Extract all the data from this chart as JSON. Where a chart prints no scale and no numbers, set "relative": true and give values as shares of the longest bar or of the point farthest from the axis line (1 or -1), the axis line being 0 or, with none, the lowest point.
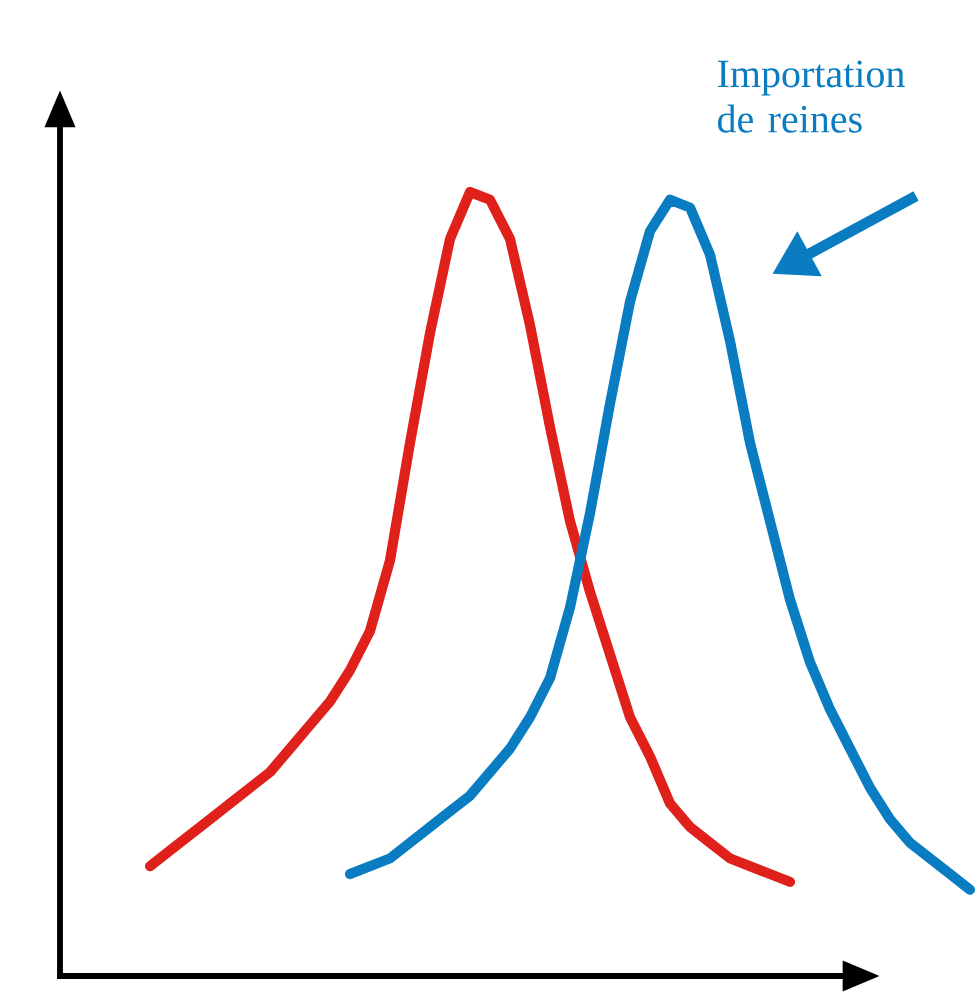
{
  "chart_data": {
    "type": "line",
    "relative": true,
    "categories": [
      null,
      null,
      null,
      null,
      null,
      null,
      null,
      null,
      null,
      null,
      null,
      null,
      null,
      null,
      null,
      null,
      null,
      null,
      null,
      null,
      null,
      null,
      null,
      null,
      null,
      null,
      null,
      null,
      null,
      null,
      null,
      null,
      null,
      null,
      null,
      null,
      null,
      null,
      null,
      null,
      null,
      null
    ],
    "series": [
      {
        "color": "#e0201b",
        "values": [
          0.14,
          0.16,
          0.18,
          0.2,
          0.22,
          0.24,
          0.26,
          0.29,
          0.32,
          0.35,
          0.39,
          0.44,
          0.53,
          0.68,
          0.82,
          0.94,
          1.0,
          0.99,
          0.94,
          0.83,
          0.7,
          0.58,
          0.49,
          0.41,
          0.33,
          0.28,
          0.22,
          0.19,
          0.17,
          0.15,
          0.14,
          0.13,
          0.12,
          null,
          null,
          null,
          null,
          null,
          null,
          null,
          null,
          null
        ]
      },
      {
        "color": "#0a7cc1",
        "values": [
          null,
          null,
          null,
          null,
          null,
          null,
          null,
          null,
          null,
          null,
          0.13,
          0.14,
          0.15,
          0.17,
          0.19,
          0.21,
          0.23,
          0.26,
          0.29,
          0.33,
          0.38,
          0.47,
          0.59,
          0.73,
          0.86,
          0.95,
          0.99,
          0.98,
          0.92,
          0.81,
          0.68,
          0.58,
          0.48,
          0.4,
          0.34,
          0.29,
          0.24,
          0.2,
          0.17,
          0.15,
          0.13,
          0.11
        ]
      }
    ],
    "annotations": [
      "Importation de reines"
    ]
  }
}
